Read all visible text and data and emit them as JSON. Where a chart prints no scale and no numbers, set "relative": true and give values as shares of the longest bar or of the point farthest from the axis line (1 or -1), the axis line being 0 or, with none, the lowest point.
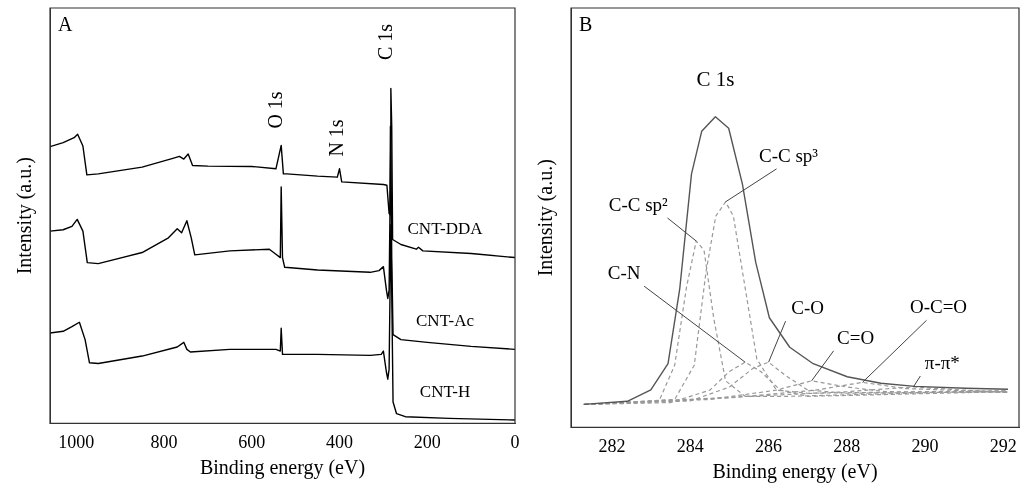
{
  "chart_data": [
    {
      "type": "line",
      "xlabel": "Binding energy (eV)",
      "ylabel": "Intensity (a.u.)",
      "relative": true,
      "xlim": [
        1060,
        0
      ],
      "xticks": [
        1000,
        800,
        600,
        400,
        200,
        0
      ],
      "annotations": [
        "A",
        "O 1s",
        "N 1s",
        "C 1s"
      ],
      "series": [
        {
          "name": "CNT-DDA",
          "color": "#000000",
          "x": [
            1060,
            1030,
            1005,
            997,
            985,
            976,
            950,
            850,
            780,
            765,
            755,
            745,
            735,
            700,
            600,
            545,
            533,
            528,
            520,
            450,
            405,
            400,
            395,
            300,
            292,
            287,
            285,
            284,
            283,
            281,
            279,
            260,
            225,
            220,
            210,
            100,
            0
          ],
          "values": [
            0.826,
            0.838,
            0.853,
            0.863,
            0.828,
            0.742,
            0.745,
            0.765,
            0.791,
            0.797,
            0.789,
            0.804,
            0.77,
            0.768,
            0.767,
            0.76,
            0.83,
            0.745,
            0.745,
            0.738,
            0.735,
            0.76,
            0.721,
            0.713,
            0.711,
            0.627,
            0.623,
            0.887,
            1,
            0.887,
            0.549,
            0.534,
            0.52,
            0.526,
            0.515,
            0.507,
            0.495
          ]
        },
        {
          "name": "CNT-Ac",
          "color": "#000000",
          "x": [
            1060,
            1030,
            1010,
            998,
            985,
            975,
            950,
            850,
            790,
            770,
            760,
            748,
            738,
            730,
            650,
            560,
            545,
            535,
            533,
            530,
            525,
            450,
            330,
            310,
            300,
            293,
            290,
            287,
            283,
            281,
            278,
            260,
            200,
            100,
            0
          ],
          "values": [
            0.574,
            0.578,
            0.588,
            0.609,
            0.574,
            0.48,
            0.477,
            0.51,
            0.554,
            0.581,
            0.569,
            0.605,
            0.554,
            0.503,
            0.515,
            0.52,
            0.505,
            0.495,
            0.706,
            0.495,
            0.466,
            0.458,
            0.451,
            0.456,
            0.468,
            0.397,
            0.373,
            0.397,
            0.858,
            0.495,
            0.265,
            0.25,
            0.242,
            0.23,
            0.221
          ]
        },
        {
          "name": "CNT-H",
          "color": "#000000",
          "x": [
            1060,
            1030,
            1010,
            993,
            980,
            970,
            950,
            850,
            770,
            755,
            748,
            740,
            650,
            545,
            535,
            533,
            530,
            450,
            330,
            305,
            300,
            293,
            290,
            287,
            283,
            281,
            278,
            270,
            250,
            150,
            0
          ],
          "values": [
            0.27,
            0.275,
            0.289,
            0.302,
            0.25,
            0.181,
            0.179,
            0.201,
            0.228,
            0.242,
            0.221,
            0.213,
            0.221,
            0.221,
            0.216,
            0.284,
            0.206,
            0.206,
            0.203,
            0.206,
            0.216,
            0.152,
            0.132,
            0.162,
            0.593,
            0.397,
            0.064,
            0.029,
            0.02,
            0.015,
            0.01
          ]
        }
      ]
    },
    {
      "type": "line",
      "xlabel": "Binding energy (eV)",
      "ylabel": "Intensity (a.u.)",
      "relative": true,
      "xlim": [
        280.95,
        292.4
      ],
      "xticks": [
        282,
        284,
        286,
        288,
        290,
        292
      ],
      "annotations": [
        "B"
      ],
      "series": [
        {
          "name": "C 1s",
          "color": "#555555",
          "line_style": "solid",
          "x": [
            281.27,
            282.39,
            282.99,
            283.43,
            283.73,
            284.03,
            284.29,
            284.64,
            284.98,
            285.33,
            285.67,
            286.02,
            286.54,
            287.14,
            288.01,
            288.87,
            289.74,
            291.04,
            292.12
          ],
          "values": [
            0.074,
            0.084,
            0.121,
            0.205,
            0.447,
            0.816,
            0.953,
            1.0,
            0.963,
            0.784,
            0.532,
            0.353,
            0.258,
            0.205,
            0.163,
            0.142,
            0.132,
            0.126,
            0.123
          ]
        },
        {
          "name": "C-C sp²",
          "color": "#999999",
          "line_style": "dashed",
          "x": [
            281.3,
            283.2,
            283.6,
            283.9,
            284.15,
            284.35,
            284.6,
            284.9,
            285.4,
            286.5,
            292.1
          ],
          "values": [
            0.074,
            0.085,
            0.2,
            0.45,
            0.6,
            0.57,
            0.35,
            0.15,
            0.1,
            0.1,
            0.118
          ]
        },
        {
          "name": "C-C sp³",
          "color": "#999999",
          "line_style": "dashed",
          "x": [
            281.3,
            283.6,
            284.1,
            284.4,
            284.65,
            284.9,
            285.1,
            285.4,
            285.7,
            286.2,
            287,
            292.1
          ],
          "values": [
            0.074,
            0.09,
            0.2,
            0.5,
            0.68,
            0.726,
            0.68,
            0.45,
            0.22,
            0.12,
            0.11,
            0.118
          ]
        },
        {
          "name": "C-N",
          "color": "#999999",
          "line_style": "dashed",
          "x": [
            281.3,
            283.5,
            284.5,
            285.0,
            285.4,
            285.8,
            286.3,
            287,
            292.1
          ],
          "values": [
            0.074,
            0.08,
            0.12,
            0.18,
            0.21,
            0.18,
            0.12,
            0.1,
            0.115
          ]
        },
        {
          "name": "C-O",
          "color": "#999999",
          "line_style": "dashed",
          "x": [
            281.3,
            284,
            285,
            285.6,
            286.0,
            286.4,
            287,
            288,
            292.1
          ],
          "values": [
            0.074,
            0.085,
            0.13,
            0.19,
            0.21,
            0.17,
            0.12,
            0.11,
            0.115
          ]
        },
        {
          "name": "C=O",
          "color": "#999999",
          "line_style": "dashed",
          "x": [
            281.3,
            284.5,
            286.2,
            287.1,
            288,
            289,
            292.1
          ],
          "values": [
            0.074,
            0.09,
            0.12,
            0.15,
            0.13,
            0.115,
            0.113
          ]
        },
        {
          "name": "O-C=O",
          "color": "#999999",
          "line_style": "dashed",
          "x": [
            281.3,
            285,
            287.2,
            288.4,
            289.5,
            292.1
          ],
          "values": [
            0.074,
            0.095,
            0.12,
            0.145,
            0.125,
            0.113
          ]
        },
        {
          "name": "π-π*",
          "color": "#999999",
          "line_style": "dashed",
          "x": [
            281.3,
            285.5,
            288,
            289.7,
            291,
            292.1
          ],
          "values": [
            0.074,
            0.1,
            0.115,
            0.13,
            0.12,
            0.113
          ]
        }
      ]
    }
  ]
}
